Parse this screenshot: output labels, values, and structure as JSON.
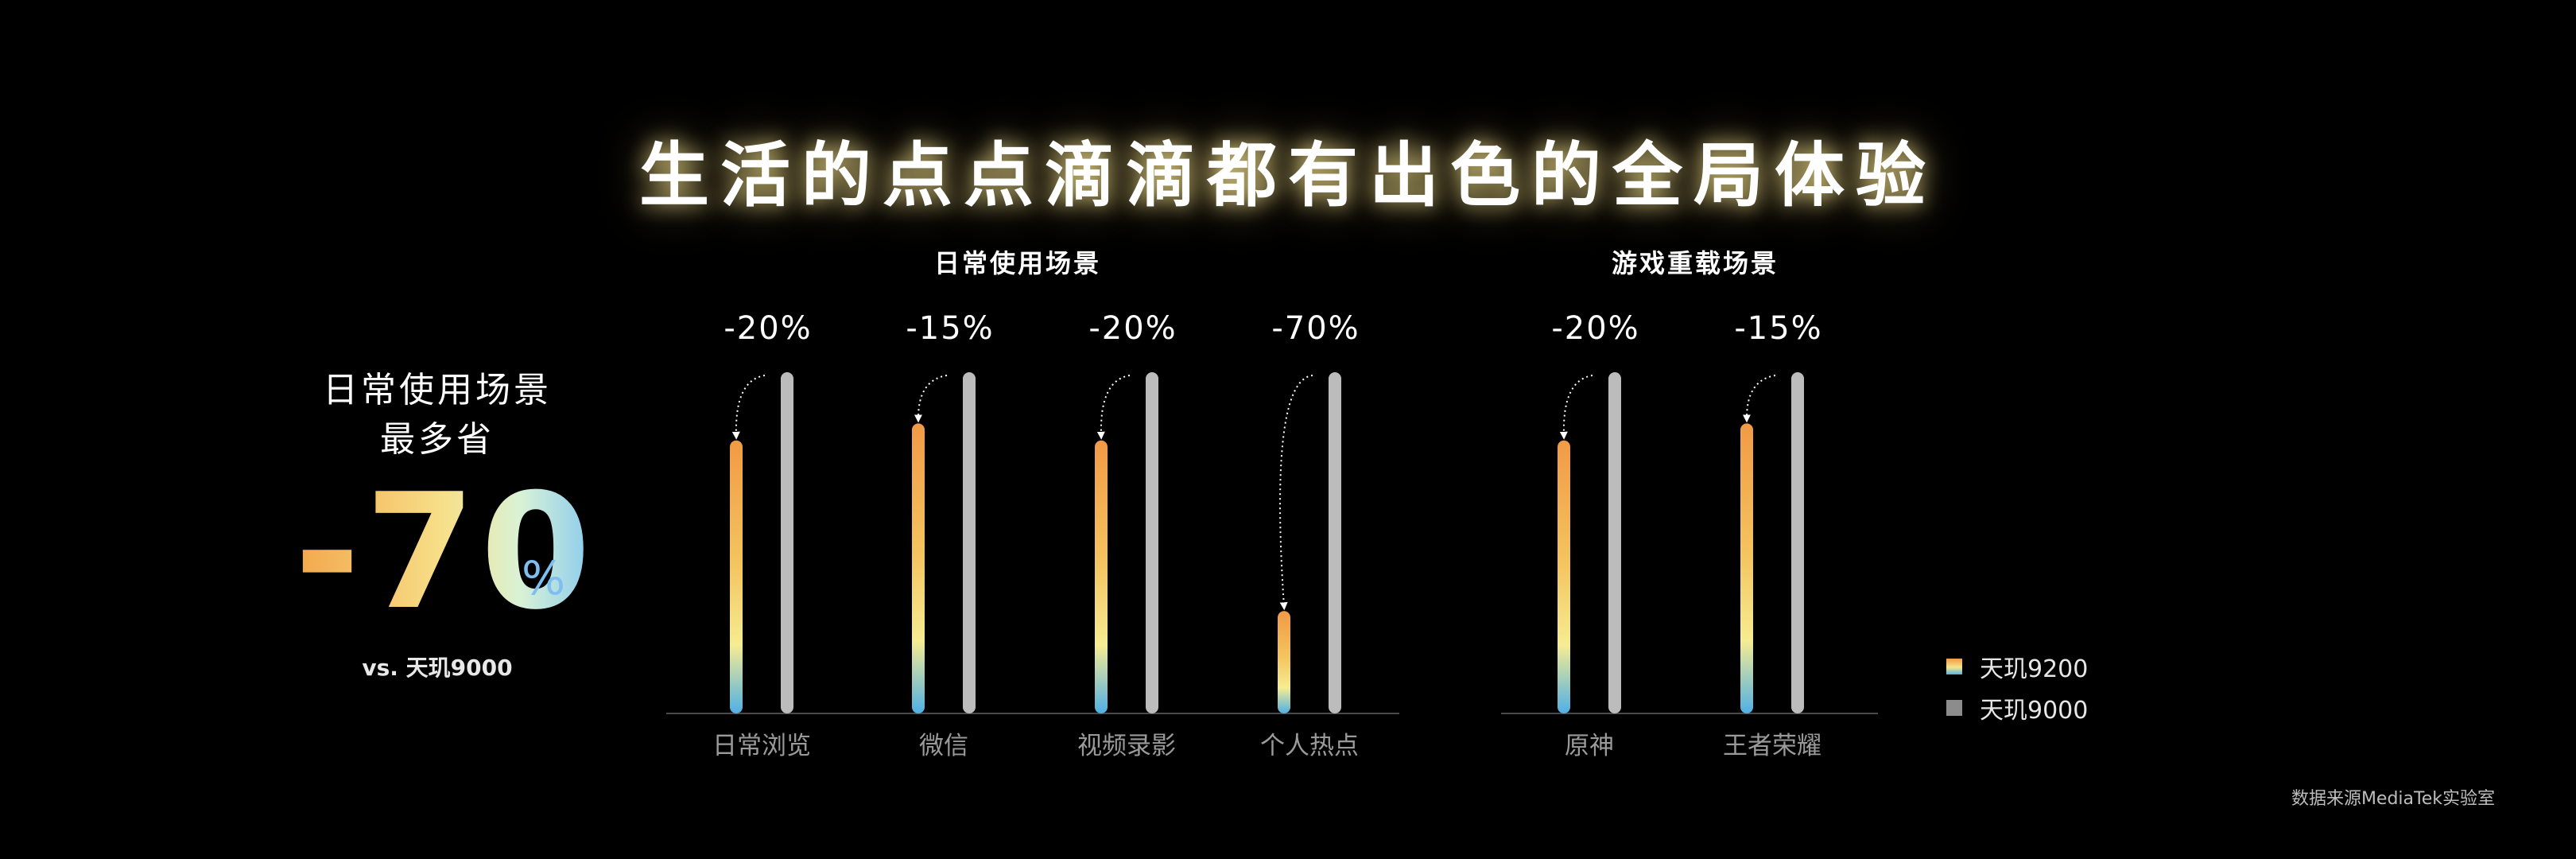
{
  "title": "生活的点点滴滴都有出色的全局体验",
  "summary": {
    "line1": "日常使用场景",
    "line2": "最多省",
    "value": "-70",
    "unit": "%",
    "comparison": "vs. 天玑9000"
  },
  "legend": [
    {
      "label": "天玑9200",
      "style": "gradient"
    },
    {
      "label": "天玑9000",
      "style": "grey"
    }
  ],
  "source": "数据来源MediaTek实验室",
  "colors": {
    "background": "#000000",
    "bar_top": "#f19a45",
    "bar_mid": "#f6e68a",
    "bar_bottom": "#56b5e6",
    "baseline_bar": "#bcbcbc"
  },
  "chart_data": [
    {
      "type": "bar",
      "title": "日常使用场景",
      "categories": [
        "日常浏览",
        "微信",
        "视频录影",
        "个人热点"
      ],
      "change_labels": [
        "-20%",
        "-15%",
        "-20%",
        "-70%"
      ],
      "series": [
        {
          "name": "天玑9200",
          "values": [
            80,
            85,
            80,
            30
          ]
        },
        {
          "name": "天玑9000",
          "values": [
            100,
            100,
            100,
            100
          ]
        }
      ],
      "ylim": [
        0,
        100
      ],
      "grid": false,
      "legend_position": "right"
    },
    {
      "type": "bar",
      "title": "游戏重载场景",
      "categories": [
        "原神",
        "王者荣耀"
      ],
      "change_labels": [
        "-20%",
        "-15%"
      ],
      "series": [
        {
          "name": "天玑9200",
          "values": [
            80,
            85
          ]
        },
        {
          "name": "天玑9000",
          "values": [
            100,
            100
          ]
        }
      ],
      "ylim": [
        0,
        100
      ],
      "grid": false,
      "legend_position": "right"
    }
  ]
}
